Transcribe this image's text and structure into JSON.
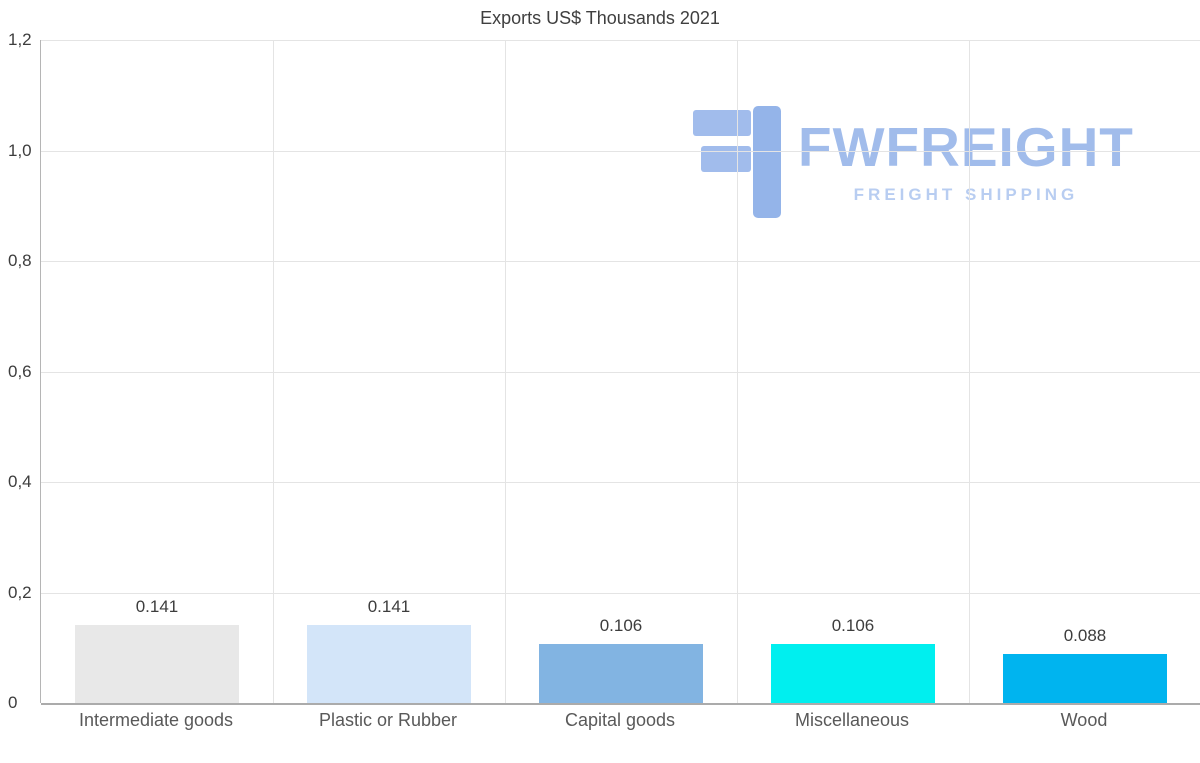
{
  "chart_data": {
    "type": "bar",
    "title": "Exports US$ Thousands 2021",
    "categories": [
      "Intermediate goods",
      "Plastic or Rubber",
      "Capital goods",
      "Miscellaneous",
      "Wood"
    ],
    "values": [
      0.141,
      0.141,
      0.106,
      0.106,
      0.088
    ],
    "value_labels": [
      "0.141",
      "0.141",
      "0.106",
      "0.106",
      "0.088"
    ],
    "bar_colors": [
      "#e8e8e8",
      "#d3e5f9",
      "#82b4e2",
      "#00efef",
      "#00b4ef"
    ],
    "xlabel": "",
    "ylabel": "",
    "ylim": [
      0,
      1.2
    ],
    "yticks": [
      {
        "value": 1.2,
        "label": "1,2"
      },
      {
        "value": 1.0,
        "label": "1,0"
      },
      {
        "value": 0.8,
        "label": "0,8"
      },
      {
        "value": 0.6,
        "label": "0,6"
      },
      {
        "value": 0.4,
        "label": "0,4"
      },
      {
        "value": 0.2,
        "label": "0,2"
      },
      {
        "value": 0.0,
        "label": "0"
      }
    ],
    "grid": true,
    "legend": false
  },
  "watermark": {
    "brand": "FWFREIGHT",
    "tagline": "FREIGHT SHIPPING",
    "brand_color": "#9cb9ea",
    "tagline_color": "#b5cbf1"
  }
}
